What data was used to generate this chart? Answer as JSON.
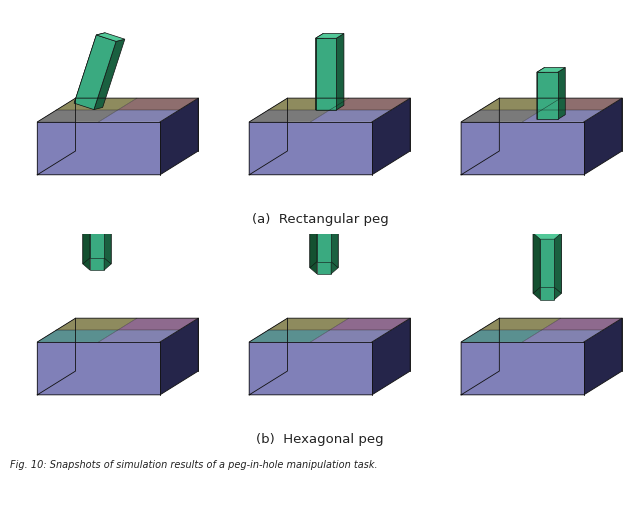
{
  "title": "Fig. 10: Snapshots of simulation results of a peg-in-hole manipulation task.",
  "subtitle_a": "(a)  Rectangular peg",
  "subtitle_b": "(b)  Hexagonal peg",
  "fig_width": 6.4,
  "fig_height": 5.1,
  "background_color": "#ffffff",
  "text_color": "#222222",
  "subtitle_fontsize": 9.5,
  "caption_fontsize": 7.0,
  "skx": 0.45,
  "sky": 0.28,
  "base_front_color": "#8080b8",
  "base_side_color": "#25254a",
  "base_left_color": "#1a1a35",
  "top_tl_color": "#8e8b5e",
  "top_tr_color": "#8e6e6e",
  "top_bl_color": "#7a7a7a",
  "top_br_color": "#8282b0",
  "top_tl_hex": "#8e8b5e",
  "top_tr_hex": "#8e6a8e",
  "top_bl_hex": "#5a9090",
  "top_br_hex": "#8282b0",
  "peg_front_color": "#3aaa80",
  "peg_top_color": "#52c898",
  "peg_side_color": "#1a6040",
  "peg_left_color": "#145030"
}
